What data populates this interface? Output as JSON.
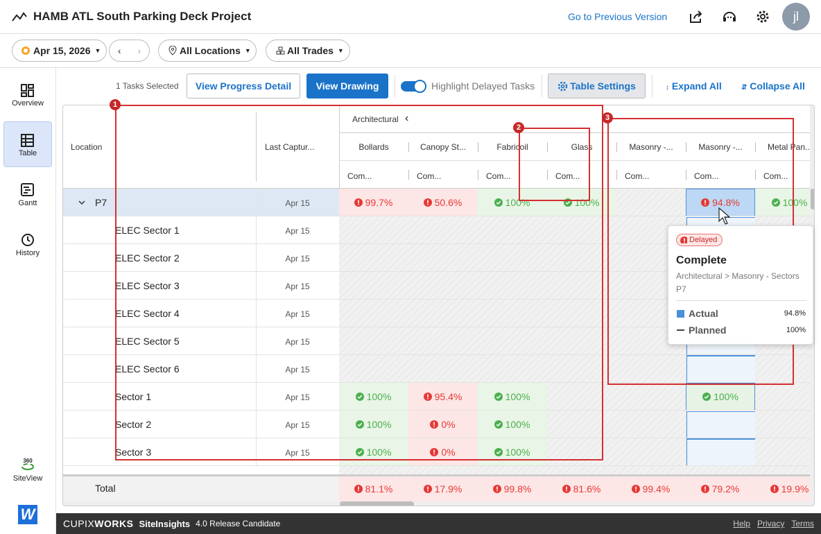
{
  "header": {
    "title": "HAMB ATL South Parking Deck Project",
    "previous_version": "Go to Previous Version",
    "avatar": "jl"
  },
  "filters": {
    "date": "Apr 15, 2026",
    "locations": "All Locations",
    "trades": "All Trades"
  },
  "sidebar": [
    "Overview",
    "Table",
    "Gantt",
    "History",
    "SiteView"
  ],
  "toolbar": {
    "selected": "1 Tasks Selected",
    "progress_detail": "View Progress Detail",
    "view_drawing": "View Drawing",
    "highlight": "Highlight Delayed Tasks",
    "table_settings": "Table Settings",
    "expand_all": "Expand All",
    "collapse_all": "Collapse All"
  },
  "table": {
    "location_header": "Location",
    "capture_header": "Last Captur...",
    "group": "Architectural",
    "columns": [
      "Bollards",
      "Canopy St...",
      "Fabricoil",
      "Glass",
      "Masonry -...",
      "Masonry -...",
      "Metal Pan..."
    ],
    "subheaders": [
      "Com...",
      "Com...",
      "Com...",
      "Com...",
      "Com...",
      "Com...",
      "Com..."
    ],
    "selected_column": 5,
    "rows": [
      {
        "location": "P7",
        "date": "Apr 15",
        "level": 0,
        "cells": [
          "99.7%",
          "50.6%",
          "100%",
          "100%",
          null,
          "94.8%",
          "100%"
        ],
        "status": [
          "delayed",
          "delayed",
          "done",
          "done",
          null,
          "delayed",
          "done"
        ]
      },
      {
        "location": "ELEC Sector 1",
        "date": "Apr 15",
        "level": 1,
        "cells": [
          null,
          null,
          null,
          null,
          null,
          null,
          null
        ],
        "status": [
          null,
          null,
          null,
          null,
          null,
          null,
          null
        ]
      },
      {
        "location": "ELEC Sector 2",
        "date": "Apr 15",
        "level": 1,
        "cells": [
          null,
          null,
          null,
          null,
          null,
          null,
          null
        ],
        "status": [
          null,
          null,
          null,
          null,
          null,
          null,
          null
        ]
      },
      {
        "location": "ELEC Sector 3",
        "date": "Apr 15",
        "level": 1,
        "cells": [
          null,
          null,
          null,
          null,
          null,
          null,
          null
        ],
        "status": [
          null,
          null,
          null,
          null,
          null,
          null,
          null
        ]
      },
      {
        "location": "ELEC Sector 4",
        "date": "Apr 15",
        "level": 1,
        "cells": [
          null,
          null,
          null,
          null,
          null,
          null,
          null
        ],
        "status": [
          null,
          null,
          null,
          null,
          null,
          null,
          null
        ]
      },
      {
        "location": "ELEC Sector 5",
        "date": "Apr 15",
        "level": 1,
        "cells": [
          null,
          null,
          null,
          null,
          null,
          null,
          null
        ],
        "status": [
          null,
          null,
          null,
          null,
          null,
          null,
          null
        ]
      },
      {
        "location": "ELEC Sector 6",
        "date": "Apr 15",
        "level": 1,
        "cells": [
          null,
          null,
          null,
          null,
          null,
          null,
          null
        ],
        "status": [
          null,
          null,
          null,
          null,
          null,
          null,
          null
        ]
      },
      {
        "location": "Sector 1",
        "date": "Apr 15",
        "level": 1,
        "cells": [
          "100%",
          "95.4%",
          "100%",
          null,
          null,
          "100%",
          null
        ],
        "status": [
          "done",
          "delayed",
          "done",
          null,
          null,
          "done",
          null
        ]
      },
      {
        "location": "Sector 2",
        "date": "Apr 15",
        "level": 1,
        "cells": [
          "100%",
          "0%",
          "100%",
          null,
          null,
          null,
          null
        ],
        "status": [
          "done",
          "delayed",
          "done",
          null,
          null,
          null,
          null
        ]
      },
      {
        "location": "Sector 3",
        "date": "Apr 15",
        "level": 1,
        "cells": [
          "100%",
          "0%",
          "100%",
          null,
          null,
          null,
          null
        ],
        "status": [
          "done",
          "delayed",
          "done",
          null,
          null,
          null,
          null
        ]
      }
    ],
    "total": {
      "label": "Total",
      "cells": [
        "81.1%",
        "17.9%",
        "99.8%",
        "81.6%",
        "99.4%",
        "79.2%",
        "19.9%"
      ],
      "status": [
        "delayed",
        "delayed",
        "delayed",
        "delayed",
        "delayed",
        "delayed",
        "delayed"
      ]
    }
  },
  "tooltip": {
    "badge": "Delayed",
    "title": "Complete",
    "path": "Architectural > Masonry - Sectors",
    "location": "P7",
    "actual_label": "Actual",
    "actual_value": "94.8%",
    "planned_label": "Planned",
    "planned_value": "100%"
  },
  "annotations": [
    "1",
    "2",
    "3"
  ],
  "footer": {
    "brand_a": "CUPIX",
    "brand_b": "WORKS",
    "product": "SiteInsights",
    "version": "4.0 Release Candidate",
    "links": [
      "Help",
      "Privacy",
      "Terms"
    ]
  }
}
